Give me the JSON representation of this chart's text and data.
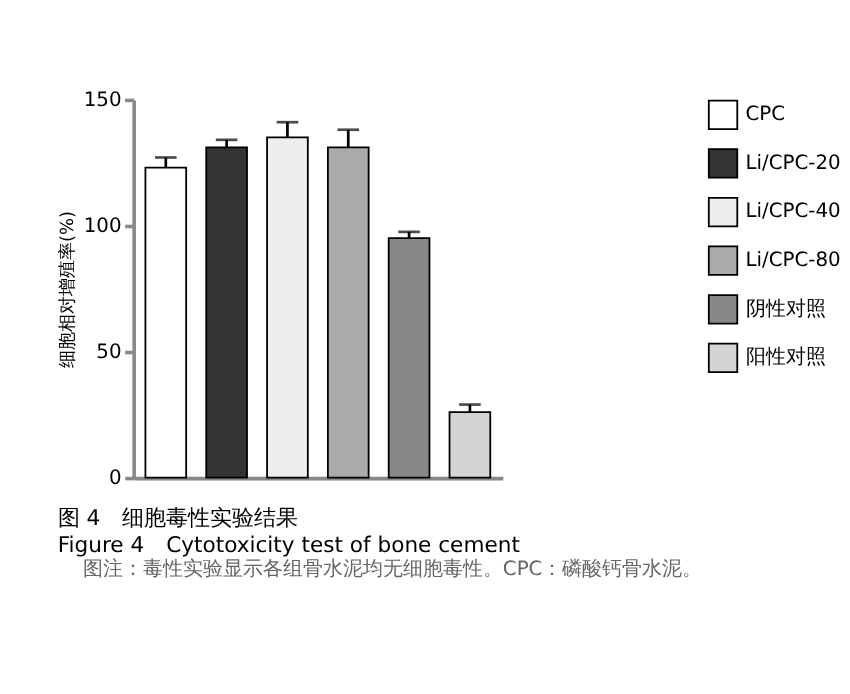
{
  "chart_data": {
    "type": "bar",
    "title": "图 4　细胞毒性实验结果",
    "subtitle": "Figure 4　Cytotoxicity test of bone cement",
    "annotations": [
      "图注：毒性实验显示各组骨水泥均无细胞毒性。CPC：磷酸钙骨水泥。"
    ],
    "ylabel": "细胞相对增殖率(%)",
    "categories": [
      null,
      null,
      null,
      null,
      null,
      null
    ],
    "series": [
      {
        "name": "CPC",
        "color": "#ffffff",
        "values": [
          123,
          null,
          null,
          null,
          null,
          null
        ],
        "errors": [
          4,
          null,
          null,
          null,
          null,
          null
        ]
      },
      {
        "name": "Li/CPC-20",
        "color": "#333333",
        "values": [
          null,
          131,
          null,
          null,
          null,
          null
        ],
        "errors": [
          null,
          3,
          null,
          null,
          null,
          null
        ]
      },
      {
        "name": "Li/CPC-40",
        "color": "#eeeeee",
        "values": [
          null,
          null,
          135,
          null,
          null,
          null
        ],
        "errors": [
          null,
          null,
          6,
          null,
          null,
          null
        ]
      },
      {
        "name": "Li/CPC-80",
        "color": "#aaaaaa",
        "values": [
          null,
          null,
          null,
          131,
          null,
          null
        ],
        "errors": [
          null,
          null,
          null,
          7,
          null,
          null
        ]
      },
      {
        "name": "阴性对照",
        "color": "#888888",
        "values": [
          null,
          null,
          null,
          null,
          95,
          null
        ],
        "errors": [
          null,
          null,
          null,
          null,
          2.5,
          null
        ]
      },
      {
        "name": "阳性对照",
        "color": "#d4d4d4",
        "values": [
          null,
          null,
          null,
          null,
          null,
          26
        ],
        "errors": [
          null,
          null,
          null,
          null,
          null,
          3
        ]
      }
    ],
    "ylim": [
      0,
      150
    ],
    "yticks": [
      0,
      50,
      100,
      150
    ],
    "grid": false,
    "legend": "top right",
    "tick_labels": "y"
  }
}
